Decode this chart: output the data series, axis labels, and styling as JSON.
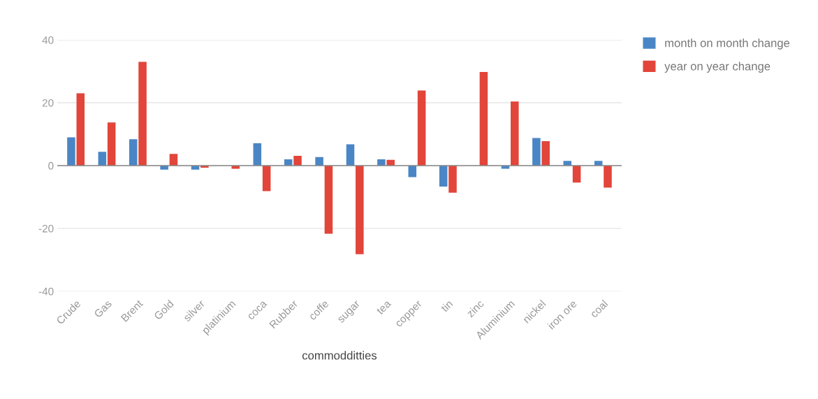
{
  "chart_data": {
    "type": "bar",
    "xlabel": "commodditties",
    "categories": [
      "Crude",
      "Gas",
      "Brent",
      "Gold",
      "silver",
      "platinium",
      "coca",
      "Rubber",
      "coffe",
      "sugar",
      "tea",
      "copper",
      "tin",
      "zinc",
      "Aluminium",
      "nickel",
      "iron ore",
      "coal"
    ],
    "series": [
      {
        "name": "month on month change",
        "color": "#4a86c5",
        "values": [
          9.0,
          4.4,
          8.4,
          -1.3,
          -1.3,
          0,
          7.1,
          2.0,
          2.7,
          6.8,
          2.0,
          -3.7,
          -6.7,
          0,
          -1.0,
          8.8,
          1.5,
          1.5
        ]
      },
      {
        "name": "year on year change",
        "color": "#e2453a",
        "values": [
          23.0,
          13.7,
          33.0,
          3.7,
          -0.7,
          -1.0,
          -8.1,
          3.1,
          -21.7,
          -28.2,
          1.8,
          23.9,
          -8.6,
          29.8,
          20.4,
          7.8,
          -5.4,
          -7.0
        ]
      }
    ],
    "ylim": [
      -40,
      40
    ],
    "yticks": [
      -40,
      -20,
      0,
      20,
      40
    ],
    "grid": "y",
    "legend": "top right"
  }
}
